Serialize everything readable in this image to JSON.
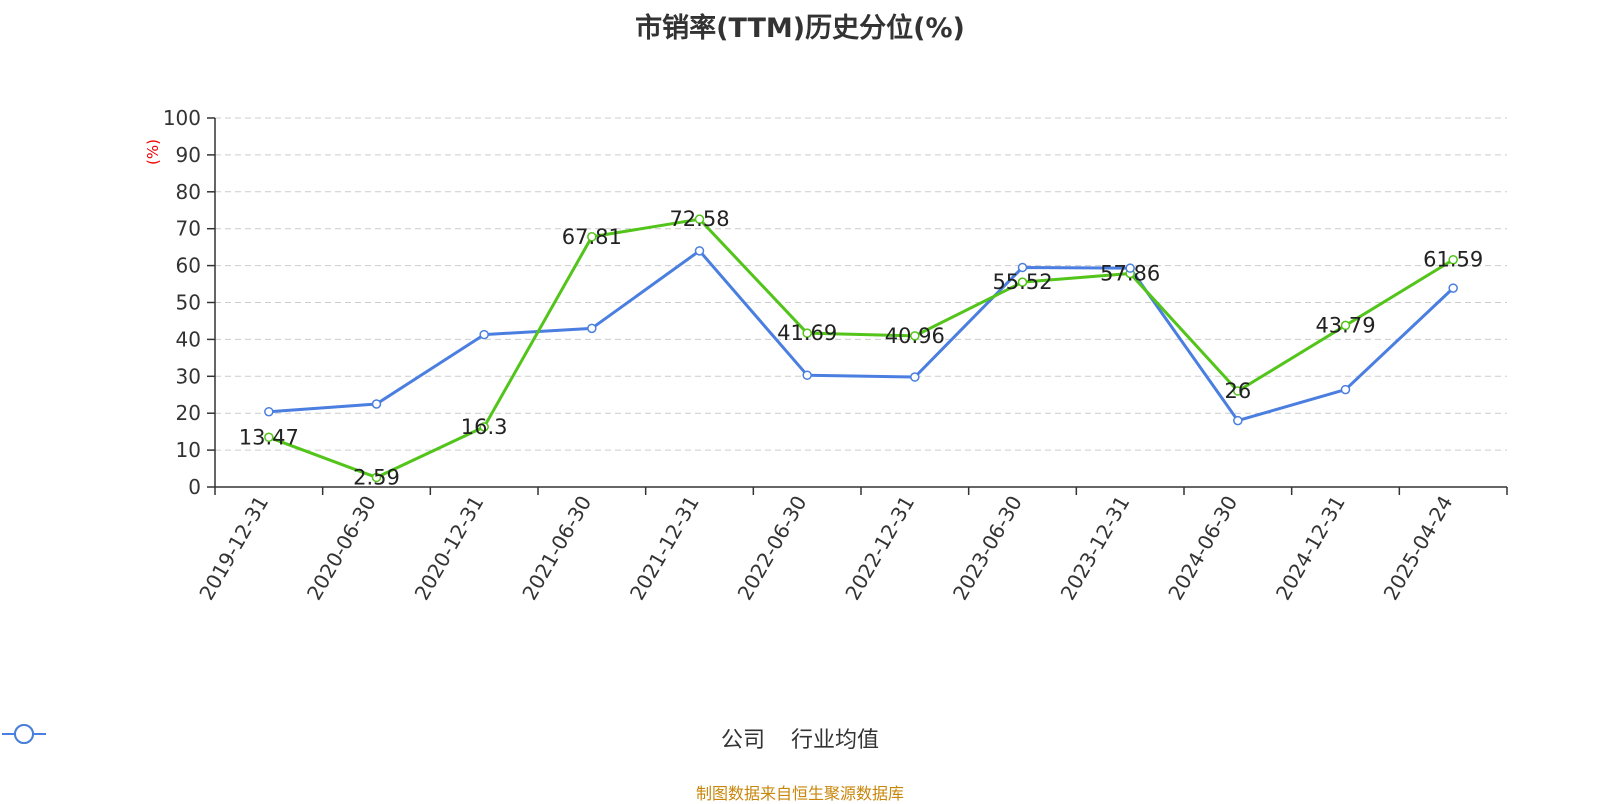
{
  "chart_data": {
    "type": "line",
    "title": "市销率(TTM)历史分位(%)",
    "ylabel": "(%)",
    "ylim": [
      0,
      100
    ],
    "yticks": [
      0,
      10,
      20,
      30,
      40,
      50,
      60,
      70,
      80,
      90,
      100
    ],
    "grid": true,
    "legend_position": "bottom",
    "categories": [
      "2019-12-31",
      "2020-06-30",
      "2020-12-31",
      "2021-06-30",
      "2021-12-31",
      "2022-06-30",
      "2022-12-31",
      "2023-06-30",
      "2023-12-31",
      "2024-06-30",
      "2024-12-31",
      "2025-04-24"
    ],
    "series": [
      {
        "name": "公司",
        "color": "#52c41a",
        "values": [
          13.47,
          2.59,
          16.3,
          67.81,
          72.58,
          41.69,
          40.96,
          55.52,
          57.86,
          26,
          43.79,
          61.59
        ],
        "labels": [
          "13.47",
          "2.59",
          "16.3",
          "67.81",
          "72.58",
          "41.69",
          "40.96",
          "55.52",
          "57.86",
          "26",
          "43.79",
          "61.59"
        ]
      },
      {
        "name": "行业均值",
        "color": "#4a7ee0",
        "values": [
          20.4,
          22.5,
          41.3,
          43.0,
          64.0,
          30.3,
          29.8,
          59.5,
          59.3,
          18.0,
          26.4,
          53.9
        ]
      }
    ]
  },
  "source": "制图数据来自恒生聚源数据库"
}
